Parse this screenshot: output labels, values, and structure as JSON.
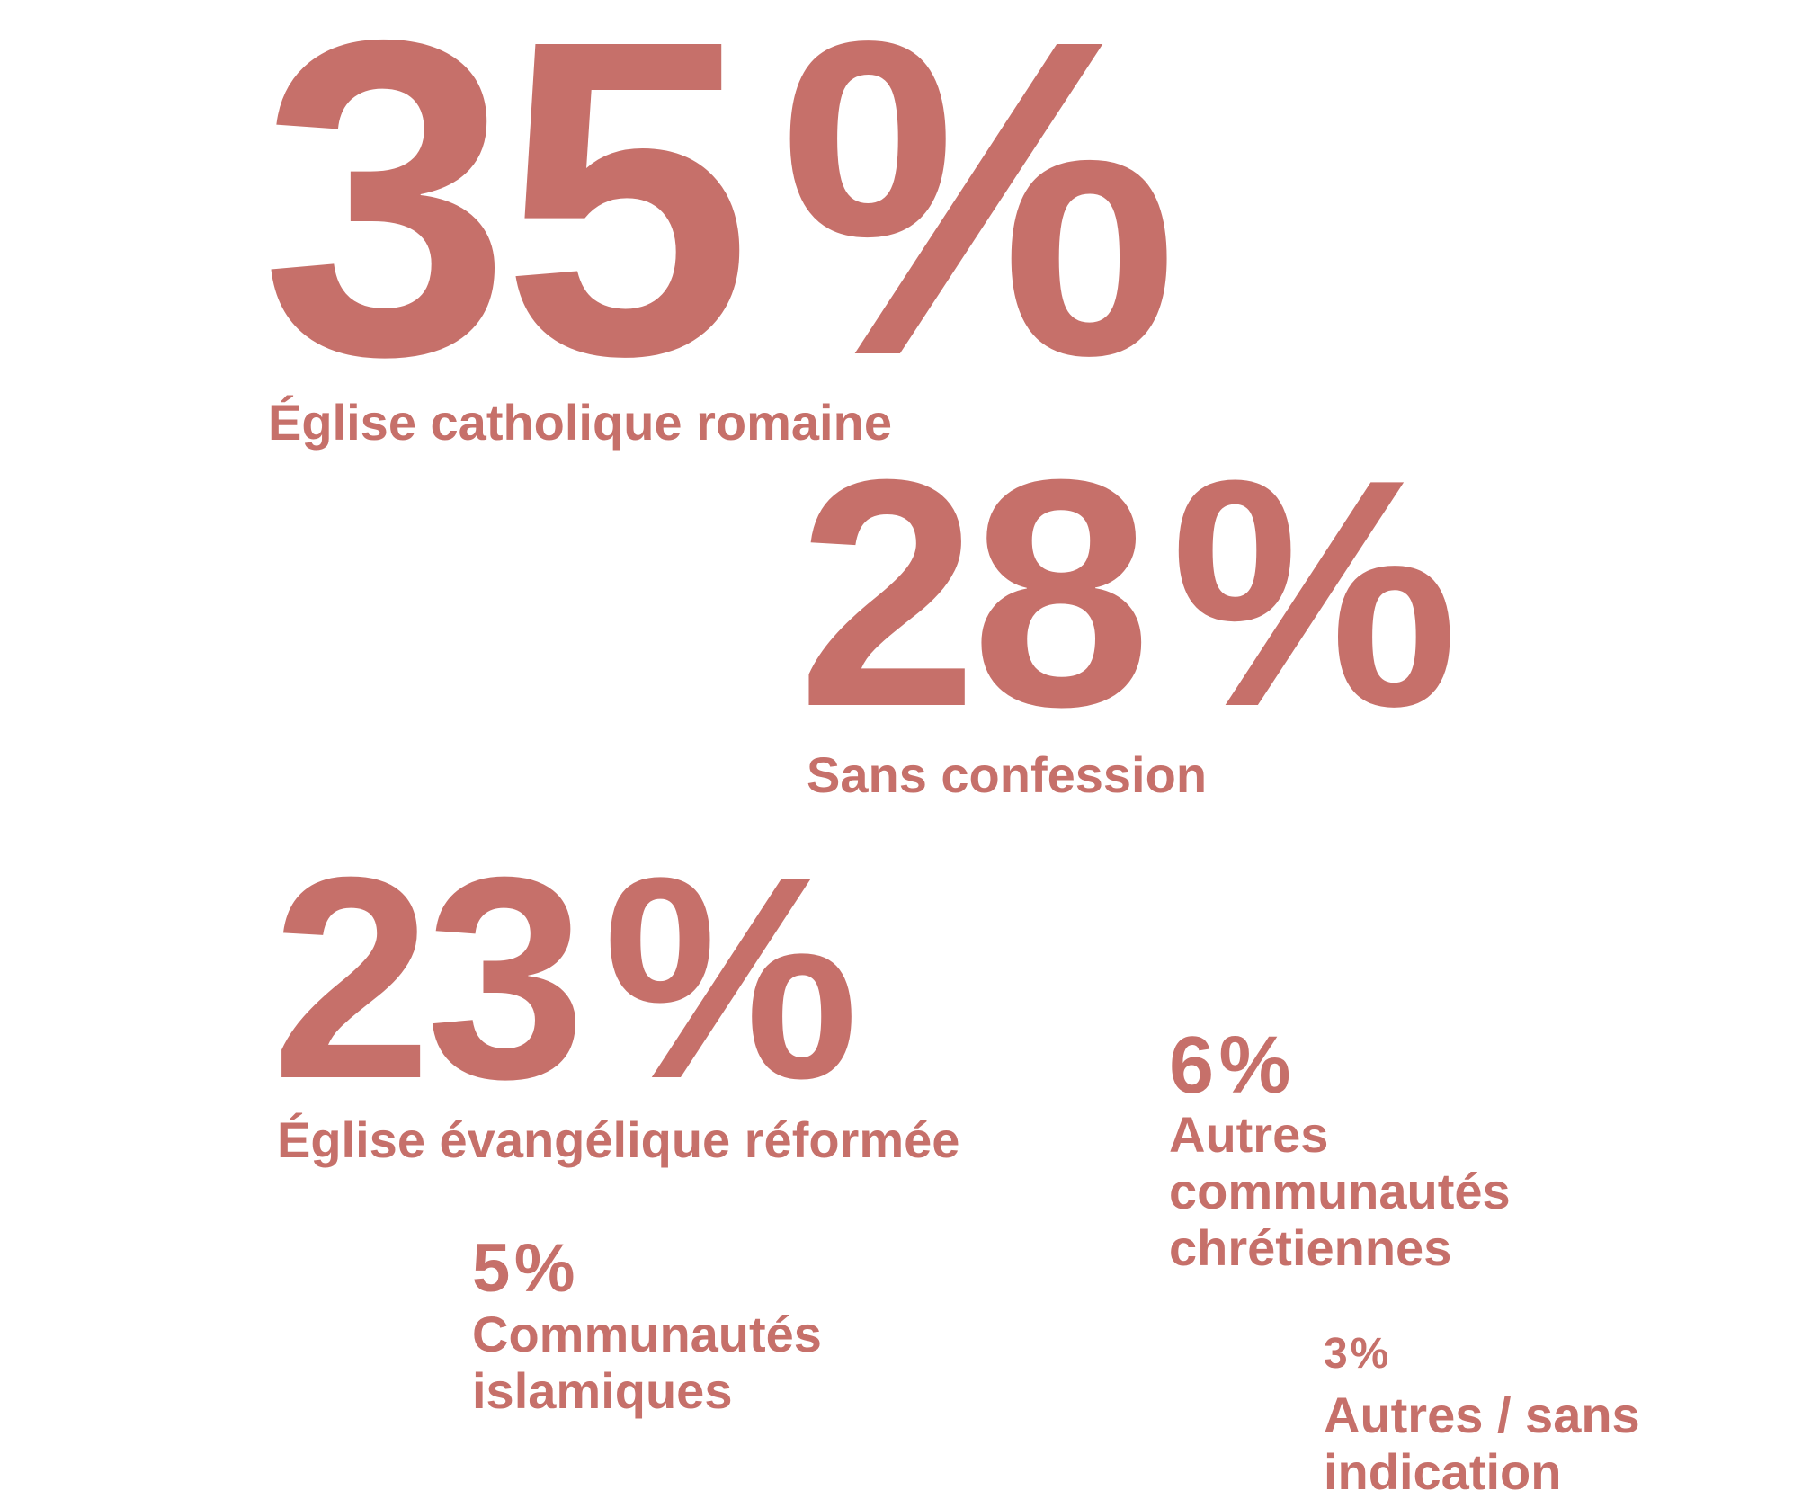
{
  "chart_data": {
    "type": "table",
    "title": "",
    "color": "#c6706a",
    "unit": "%",
    "items": [
      {
        "value": 35,
        "label": "Église catholique romaine"
      },
      {
        "value": 28,
        "label": "Sans confession"
      },
      {
        "value": 23,
        "label": "Église évangélique réformée"
      },
      {
        "value": 6,
        "label": "Autres communautés chrétiennes"
      },
      {
        "value": 5,
        "label": "Communautés islamiques"
      },
      {
        "value": 3,
        "label": "Autres / sans indication"
      }
    ]
  }
}
